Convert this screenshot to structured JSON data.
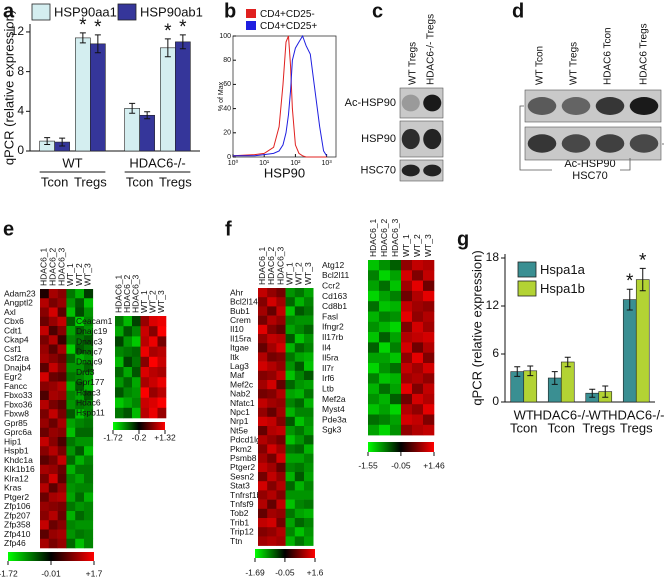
{
  "chart_data": [
    {
      "type": "bar",
      "panel": "a",
      "ylabel": "qPCR (relative expression)",
      "categories": [
        "Tcon",
        "Tregs",
        "Tcon",
        "Tregs"
      ],
      "groups": [
        "WT",
        "HDAC6-/-"
      ],
      "ylim": [
        0,
        12.8
      ],
      "yticks": [
        0,
        4,
        8,
        12
      ],
      "series": [
        {
          "name": "HSP90aa1",
          "color": "#d4eef0",
          "values": [
            1.0,
            11.4,
            4.3,
            10.4
          ],
          "errors": [
            0.35,
            0.5,
            0.5,
            0.9
          ],
          "annotations": [
            null,
            "*",
            null,
            "*"
          ]
        },
        {
          "name": "HSP90ab1",
          "color": "#35369a",
          "values": [
            0.9,
            10.8,
            3.6,
            11.0
          ],
          "errors": [
            0.4,
            0.9,
            0.35,
            0.7
          ],
          "annotations": [
            null,
            "*",
            null,
            "*"
          ]
        }
      ]
    },
    {
      "type": "line",
      "panel": "b",
      "ylabel": "% of Max",
      "xlabel": "HSP90",
      "xscale": "log",
      "xlim": [
        1,
        2000
      ],
      "xticks": [
        {
          "value": 1,
          "label": "10⁰"
        },
        {
          "value": 10,
          "label": "10¹"
        },
        {
          "value": 100,
          "label": "10²"
        },
        {
          "value": 1000,
          "label": "10³"
        }
      ],
      "ylim": [
        0,
        100
      ],
      "yticks": [
        0,
        20,
        40,
        60,
        80,
        100
      ],
      "x": [
        1,
        5,
        10,
        20,
        30,
        40,
        50,
        60,
        70,
        80,
        100,
        130,
        170,
        220,
        300,
        400,
        600,
        800,
        1000
      ],
      "series": [
        {
          "name": "CD4+CD25-",
          "color": "#e0201f",
          "values": [
            1,
            2,
            3,
            8,
            25,
            60,
            95,
            100,
            75,
            40,
            10,
            3,
            1,
            0,
            0,
            0,
            0,
            0,
            0
          ]
        },
        {
          "name": "CD4+CD25+",
          "color": "#1f1fe0",
          "values": [
            1,
            1,
            2,
            3,
            5,
            10,
            20,
            35,
            55,
            80,
            90,
            95,
            100,
            92,
            85,
            60,
            25,
            5,
            1
          ]
        }
      ]
    },
    {
      "type": "heatmap",
      "panel": "e",
      "colormap": [
        "#00ff00",
        "#000000",
        "#ff0000"
      ],
      "clim": [
        -1.72,
        1.7
      ],
      "cticks": [
        -1.72,
        -0.01,
        {
          "value": 1.7,
          "label": "+1.7"
        }
      ],
      "columns": [
        "HDAC6_1",
        "HDAC6_2",
        "HDAC6_3",
        "WT_1",
        "WT_2",
        "WT_3"
      ],
      "rows": [
        "Adam23",
        "Angptl2",
        "Axl",
        "Cbx6",
        "Cdt1",
        "Ckap4",
        "Csf1",
        "Csf2ra",
        "Dnajb4",
        "Egr2",
        "Fancc",
        "Fbxo33",
        "Fbxo36",
        "Fbxw8",
        "Gpr85",
        "Gprc6a",
        "Hip1",
        "Hspb1",
        "Khdc1a",
        "Klk1b16",
        "Klra12",
        "Kras",
        "Ptger2",
        "Zfp106",
        "Zfp207",
        "Zfp358",
        "Zfp410",
        "Zfp46"
      ],
      "values": [
        [
          0.2,
          1.1,
          0.9,
          -0.8,
          -1.2,
          -0.4
        ],
        [
          1.2,
          0.8,
          1.0,
          -1.0,
          -0.6,
          -1.3
        ],
        [
          0.9,
          1.4,
          0.6,
          -1.3,
          -0.5,
          -1.0
        ],
        [
          0.7,
          1.0,
          1.3,
          -0.6,
          -1.4,
          -0.9
        ],
        [
          1.3,
          0.5,
          0.9,
          -1.1,
          -0.7,
          -1.0
        ],
        [
          0.8,
          1.2,
          0.4,
          -0.9,
          -0.8,
          -0.6
        ],
        [
          1.0,
          0.6,
          1.1,
          -1.4,
          -0.6,
          -0.8
        ],
        [
          1.1,
          0.9,
          0.7,
          -0.7,
          -1.2,
          -1.0
        ],
        [
          0.6,
          1.3,
          0.9,
          -1.0,
          -1.0,
          -0.7
        ],
        [
          1.4,
          0.7,
          0.6,
          -0.8,
          -0.9,
          -1.1
        ],
        [
          0.9,
          1.0,
          1.2,
          -1.2,
          -0.6,
          -1.2
        ],
        [
          0.5,
          1.1,
          1.0,
          -0.9,
          -1.1,
          -0.6
        ],
        [
          1.2,
          0.8,
          0.6,
          -1.0,
          -0.8,
          -0.9
        ],
        [
          0.8,
          1.3,
          0.8,
          -0.6,
          -1.3,
          -0.9
        ],
        [
          1.0,
          0.7,
          1.1,
          -1.1,
          -0.9,
          -0.8
        ],
        [
          0.7,
          1.0,
          0.9,
          -1.3,
          -0.7,
          -0.7
        ],
        [
          1.3,
          0.9,
          0.5,
          -0.8,
          -1.0,
          -1.0
        ],
        [
          0.9,
          1.2,
          0.8,
          -1.0,
          -0.6,
          -1.3
        ],
        [
          0.6,
          0.8,
          1.3,
          -0.7,
          -1.2,
          -0.9
        ],
        [
          1.1,
          1.0,
          0.7,
          -1.2,
          -0.8,
          -0.8
        ],
        [
          0.8,
          1.4,
          0.6,
          -0.9,
          -1.1,
          -0.8
        ],
        [
          1.2,
          0.6,
          1.0,
          -1.0,
          -0.9,
          -0.9
        ],
        [
          0.7,
          1.1,
          1.2,
          -1.1,
          -0.7,
          -1.2
        ],
        [
          1.0,
          0.9,
          0.8,
          -0.8,
          -1.0,
          -0.9
        ],
        [
          0.9,
          1.2,
          0.7,
          -1.2,
          -0.7,
          -0.9
        ],
        [
          1.3,
          0.7,
          0.9,
          -0.9,
          -1.0,
          -1.0
        ],
        [
          0.6,
          1.0,
          1.1,
          -1.0,
          -0.8,
          -0.9
        ],
        [
          1.1,
          0.8,
          1.0,
          -0.7,
          -1.3,
          -0.9
        ]
      ]
    },
    {
      "type": "heatmap",
      "colormap": [
        "#00ff00",
        "#000000",
        "#ff0000"
      ],
      "clim": [
        -1.72,
        1.32
      ],
      "cticks": [
        -1.72,
        -0.2,
        {
          "value": 1.32,
          "label": "+1.32"
        }
      ],
      "columns": [
        "HDAC6_1",
        "HDAC6_2",
        "HDAC6_3",
        "WT_1",
        "WT_2",
        "WT_3"
      ],
      "rows": [
        "Ceacam1",
        "Dnajc19",
        "Dnajc3",
        "Dnajc7",
        "Dnajc9",
        "Drd3",
        "Gpr177",
        "Hdac3",
        "Hdac6",
        "Hspb11"
      ],
      "values": [
        [
          -0.9,
          -1.3,
          -0.6,
          0.7,
          1.1,
          1.2
        ],
        [
          -1.2,
          -0.7,
          -1.0,
          1.0,
          0.6,
          1.3
        ],
        [
          -0.6,
          -1.1,
          -1.4,
          0.9,
          1.2,
          0.5
        ],
        [
          -1.0,
          -0.9,
          -0.8,
          1.2,
          0.8,
          0.9
        ],
        [
          -1.3,
          -0.6,
          -0.9,
          0.6,
          1.3,
          1.0
        ],
        [
          -0.8,
          -1.2,
          -0.7,
          1.1,
          0.9,
          0.8
        ],
        [
          -1.1,
          -0.8,
          -1.2,
          0.8,
          1.0,
          1.2
        ],
        [
          -0.7,
          -1.0,
          -1.1,
          1.3,
          0.7,
          0.9
        ],
        [
          -1.4,
          -1.2,
          -1.0,
          1.0,
          1.1,
          1.3
        ],
        [
          -0.9,
          -0.7,
          -1.3,
          0.9,
          1.2,
          0.7
        ]
      ]
    },
    {
      "type": "heatmap",
      "panel": "f",
      "colormap": [
        "#00ff00",
        "#000000",
        "#ff0000"
      ],
      "clim": [
        -1.69,
        1.6
      ],
      "cticks": [
        -1.69,
        -0.05,
        {
          "value": 1.6,
          "label": "+1.6"
        }
      ],
      "columns": [
        "HDAC6_1",
        "HDAC6_2",
        "HDAC6_3",
        "WT_1",
        "WT_2",
        "WT_3"
      ],
      "rows": [
        "Ahr",
        "Bcl2l14",
        "Bub1",
        "Crem",
        "Il10",
        "Il15ra",
        "Itgae",
        "Itk",
        "Lag3",
        "Maf",
        "Mef2c",
        "Nab2",
        "Nfatc1",
        "Npc1",
        "Nrp1",
        "Nt5e",
        "Pdcd1lg2",
        "Pkm2",
        "Psmb8",
        "Ptger2",
        "Sesn2",
        "Stat3",
        "Tnfrsf1b",
        "Tnfsf9",
        "Tob2",
        "Trib1",
        "Trip12",
        "Ttn"
      ],
      "values": [
        [
          1.2,
          0.9,
          0.7,
          -1.0,
          -0.8,
          -1.1
        ],
        [
          0.8,
          1.3,
          1.0,
          -0.7,
          -1.2,
          -0.9
        ],
        [
          1.0,
          0.6,
          1.2,
          -1.3,
          -0.6,
          -0.8
        ],
        [
          0.7,
          1.1,
          0.9,
          -0.9,
          -1.0,
          -1.0
        ],
        [
          1.4,
          0.8,
          0.6,
          -1.1,
          -0.9,
          -0.7
        ],
        [
          0.9,
          1.2,
          1.1,
          -0.6,
          -1.3,
          -1.0
        ],
        [
          0.6,
          1.0,
          1.3,
          -1.2,
          -0.7,
          -0.9
        ],
        [
          1.1,
          0.7,
          0.8,
          -0.8,
          -1.1,
          -1.2
        ],
        [
          1.3,
          1.1,
          0.9,
          -1.0,
          -0.6,
          -1.3
        ],
        [
          0.8,
          0.9,
          1.2,
          -1.3,
          -0.9,
          -0.6
        ],
        [
          1.0,
          1.3,
          0.6,
          -0.7,
          -1.0,
          -1.1
        ],
        [
          0.7,
          0.8,
          1.1,
          -1.1,
          -1.2,
          -0.8
        ],
        [
          1.2,
          1.0,
          0.9,
          -0.9,
          -0.7,
          -1.2
        ],
        [
          0.9,
          0.6,
          1.0,
          -1.2,
          -0.9,
          -0.9
        ],
        [
          1.3,
          1.2,
          0.8,
          -0.6,
          -1.3,
          -1.0
        ],
        [
          0.6,
          1.1,
          1.2,
          -1.0,
          -0.8,
          -1.1
        ],
        [
          1.1,
          0.9,
          0.7,
          -1.3,
          -1.0,
          -0.7
        ],
        [
          0.8,
          1.3,
          1.0,
          -0.8,
          -0.7,
          -1.2
        ],
        [
          1.0,
          0.7,
          1.3,
          -1.1,
          -1.1,
          -0.9
        ],
        [
          1.2,
          1.0,
          0.6,
          -0.9,
          -0.8,
          -1.0
        ],
        [
          0.7,
          1.2,
          0.9,
          -1.2,
          -0.6,
          -1.1
        ],
        [
          1.3,
          0.8,
          1.1,
          -0.7,
          -1.2,
          -0.9
        ],
        [
          0.9,
          1.1,
          0.8,
          -1.0,
          -1.0,
          -1.0
        ],
        [
          1.1,
          0.6,
          1.2,
          -1.3,
          -0.9,
          -0.8
        ],
        [
          0.6,
          1.0,
          0.9,
          -0.8,
          -1.1,
          -1.2
        ],
        [
          1.2,
          1.3,
          0.7,
          -1.1,
          -0.7,
          -0.9
        ],
        [
          0.8,
          0.9,
          1.1,
          -0.9,
          -1.3,
          -1.0
        ],
        [
          1.0,
          1.1,
          1.0,
          -1.2,
          -0.8,
          -1.1
        ]
      ]
    },
    {
      "type": "heatmap",
      "colormap": [
        "#00ff00",
        "#000000",
        "#ff0000"
      ],
      "clim": [
        -1.55,
        1.46
      ],
      "cticks": [
        -1.55,
        -0.05,
        {
          "value": 1.46,
          "label": "+1.46"
        }
      ],
      "columns": [
        "HDAC6_1",
        "HDAC6_2",
        "HDAC6_3",
        "WT_1",
        "WT_2",
        "WT_3"
      ],
      "rows": [
        "Atg12",
        "Bcl2l11",
        "Ccr2",
        "Cd163",
        "Cd8b1",
        "Fasl",
        "Ifngr2",
        "Il17rb",
        "Il4",
        "Il5ra",
        "Il7r",
        "Irf6",
        "Ltb",
        "Mef2a",
        "Myst4",
        "Pde3a",
        "Sgk3"
      ],
      "values": [
        [
          -1.2,
          -0.9,
          -0.6,
          0.8,
          1.1,
          1.0
        ],
        [
          -0.8,
          -1.3,
          -1.0,
          1.2,
          0.7,
          1.1
        ],
        [
          -1.0,
          -0.7,
          -1.2,
          0.9,
          1.3,
          0.6
        ],
        [
          -1.3,
          -1.0,
          -0.8,
          0.6,
          1.0,
          1.3
        ],
        [
          -0.7,
          -1.2,
          -1.1,
          1.1,
          0.9,
          0.8
        ],
        [
          -1.1,
          -0.8,
          -0.9,
          1.3,
          0.8,
          1.0
        ],
        [
          -0.9,
          -1.1,
          -1.3,
          0.7,
          1.2,
          0.9
        ],
        [
          -1.2,
          -0.6,
          -1.0,
          1.0,
          1.1,
          1.2
        ],
        [
          -0.6,
          -1.3,
          -0.8,
          1.2,
          0.6,
          1.0
        ],
        [
          -1.0,
          -1.0,
          -1.2,
          0.8,
          1.3,
          0.7
        ],
        [
          -1.3,
          -0.9,
          -0.7,
          1.1,
          0.9,
          1.2
        ],
        [
          -0.8,
          -1.2,
          -1.1,
          0.9,
          1.0,
          0.8
        ],
        [
          -1.1,
          -0.7,
          -1.0,
          1.3,
          0.7,
          1.1
        ],
        [
          -0.9,
          -1.1,
          -0.6,
          0.6,
          1.2,
          1.0
        ],
        [
          -1.2,
          -1.0,
          -1.3,
          1.0,
          0.8,
          1.3
        ],
        [
          -0.7,
          -0.8,
          -1.0,
          1.2,
          1.1,
          0.7
        ],
        [
          -1.0,
          -1.3,
          -0.9,
          0.8,
          1.0,
          1.1
        ]
      ]
    },
    {
      "type": "bar",
      "panel": "g",
      "ylabel": "qPCR (relative expression)",
      "categories": [
        [
          "WT",
          "Tcon"
        ],
        [
          "HDAC6-/-",
          "Tcon"
        ],
        [
          "WT",
          "Tregs"
        ],
        [
          "HDAC6-/-",
          "Tregs"
        ]
      ],
      "ylim": [
        0,
        18.5
      ],
      "yticks": [
        0,
        6,
        12,
        18
      ],
      "series": [
        {
          "name": "Hspa1a",
          "color": "#3a8f92",
          "values": [
            3.8,
            3.0,
            1.1,
            12.8
          ],
          "errors": [
            0.6,
            0.8,
            0.5,
            1.3
          ],
          "annotations": [
            null,
            null,
            null,
            "*"
          ]
        },
        {
          "name": "Hspa1b",
          "color": "#b3d334",
          "values": [
            3.9,
            5.0,
            1.3,
            15.3
          ],
          "errors": [
            0.6,
            0.6,
            0.7,
            1.4
          ],
          "annotations": [
            null,
            null,
            null,
            "*"
          ]
        }
      ]
    }
  ],
  "blots": [
    {
      "panel": "c",
      "lanes": [
        "WT Tregs",
        "HDAC6-/- Tregs"
      ],
      "rows": [
        "Ac-HSP90",
        "HSP90",
        "HSC70"
      ]
    },
    {
      "panel": "d",
      "lanes": [
        "WT Tcon",
        "WT Tregs",
        "HDAC6 Tcon",
        "HDAC6 Tregs"
      ],
      "rows": [
        "Ac-HSP90",
        "HSC70"
      ]
    }
  ]
}
